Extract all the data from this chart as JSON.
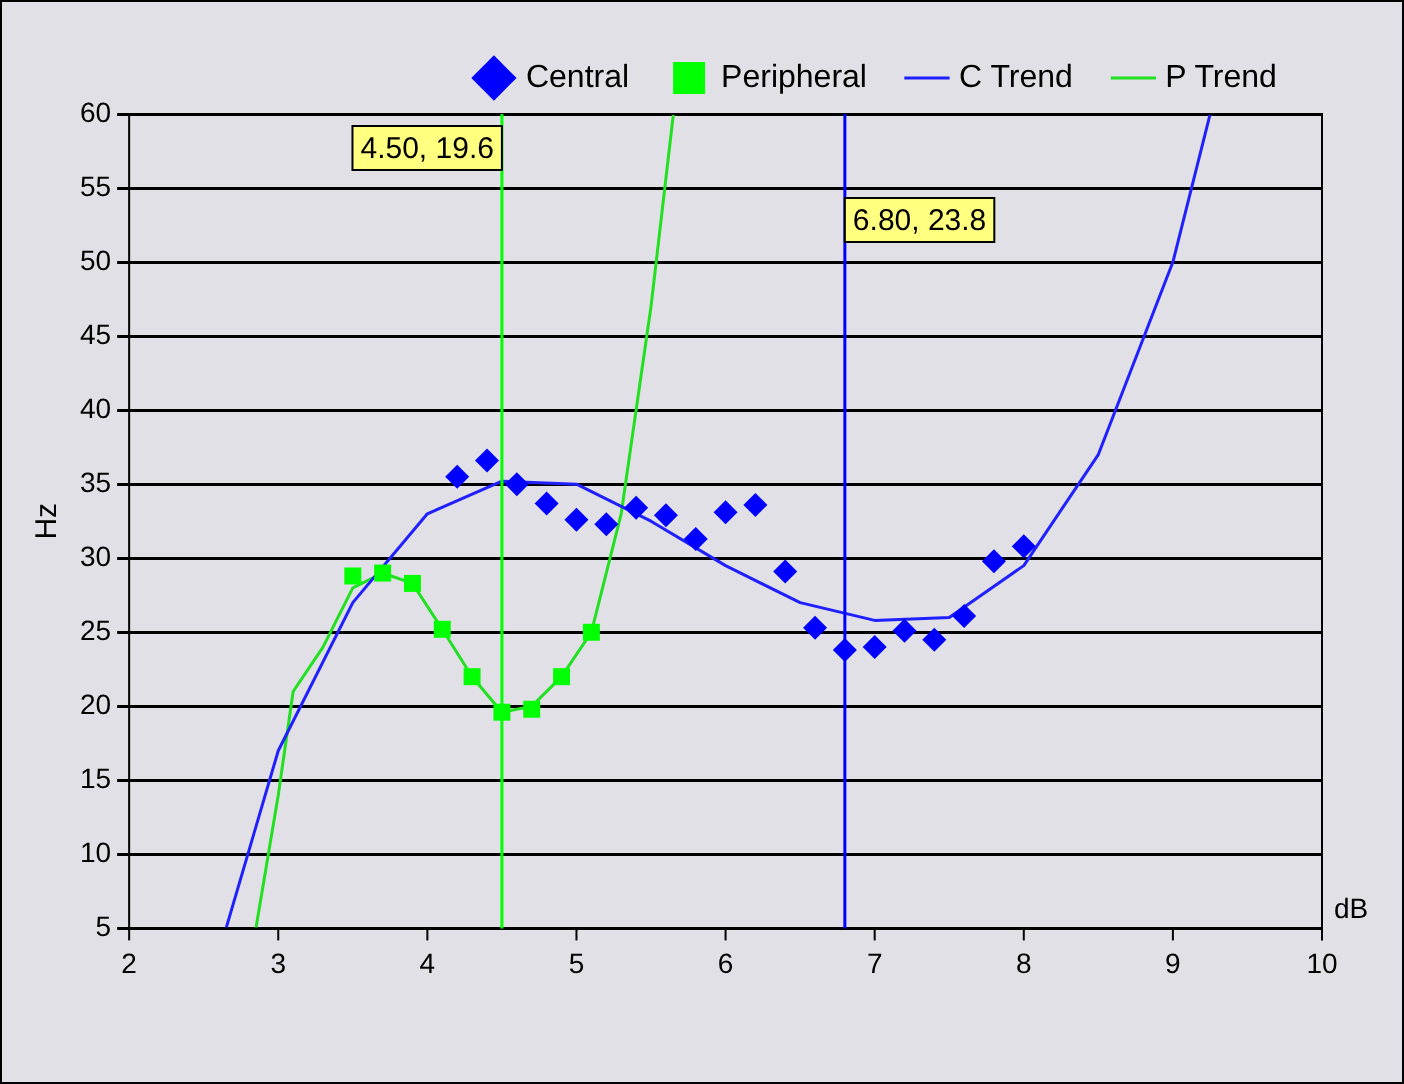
{
  "chart_data": {
    "type": "scatter",
    "xlabel": "dB",
    "ylabel": "Hz",
    "xlim": [
      2,
      10
    ],
    "xticks": [
      2,
      3,
      4,
      5,
      6,
      7,
      8,
      9,
      10
    ],
    "ylim": [
      5,
      60
    ],
    "yticks": [
      5,
      10,
      15,
      20,
      25,
      30,
      35,
      40,
      45,
      50,
      55,
      60
    ],
    "grid": "y",
    "legend": "top right",
    "series": [
      {
        "name": "Central",
        "marker": "diamond",
        "color": "#0000ff",
        "x": [
          4.2,
          4.4,
          4.6,
          4.8,
          5.0,
          5.2,
          5.4,
          5.6,
          5.8,
          6.0,
          6.2,
          6.4,
          6.6,
          6.8,
          7.0,
          7.2,
          7.4,
          7.6,
          7.8,
          8.0
        ],
        "values": [
          35.5,
          36.6,
          35.0,
          33.7,
          32.6,
          32.3,
          33.4,
          32.9,
          31.3,
          33.1,
          33.6,
          29.1,
          25.3,
          23.8,
          24.0,
          25.1,
          24.5,
          26.1,
          29.8,
          30.8
        ]
      },
      {
        "name": "Peripheral",
        "marker": "square",
        "color": "#00ff00",
        "x": [
          3.5,
          3.7,
          3.9,
          4.1,
          4.3,
          4.5,
          4.7,
          4.9,
          5.1
        ],
        "values": [
          28.8,
          29.0,
          28.3,
          25.2,
          22.0,
          19.6,
          19.8,
          22.0,
          25.0
        ]
      },
      {
        "name": "C Trend",
        "type": "line",
        "marker": "none",
        "color": "#2020ff",
        "x": [
          2.65,
          3.0,
          3.5,
          4.0,
          4.5,
          5.0,
          5.5,
          6.0,
          6.5,
          7.0,
          7.5,
          8.0,
          8.5,
          9.0,
          9.25
        ],
        "values": [
          5,
          17,
          27,
          33,
          35.2,
          35,
          32.5,
          29.5,
          27,
          25.8,
          26,
          29.5,
          37,
          50,
          60
        ]
      },
      {
        "name": "P Trend",
        "type": "line",
        "marker": "none",
        "color": "#20e020",
        "x": [
          2.85,
          3.0,
          3.1,
          3.3,
          3.5,
          3.7,
          3.9,
          4.1,
          4.3,
          4.5,
          4.7,
          4.9,
          5.1,
          5.3,
          5.5,
          5.65
        ],
        "values": [
          5,
          14,
          21,
          24,
          28,
          29,
          28.3,
          25.2,
          22,
          19.6,
          20,
          22,
          25,
          33,
          47,
          60
        ]
      }
    ],
    "ref_lines": [
      {
        "axis": "x",
        "value": 4.5,
        "label": "4.50, 19.6",
        "color": "#00ff00"
      },
      {
        "axis": "x",
        "value": 6.8,
        "label": "6.80, 23.8",
        "color": "#0000ff"
      }
    ]
  }
}
